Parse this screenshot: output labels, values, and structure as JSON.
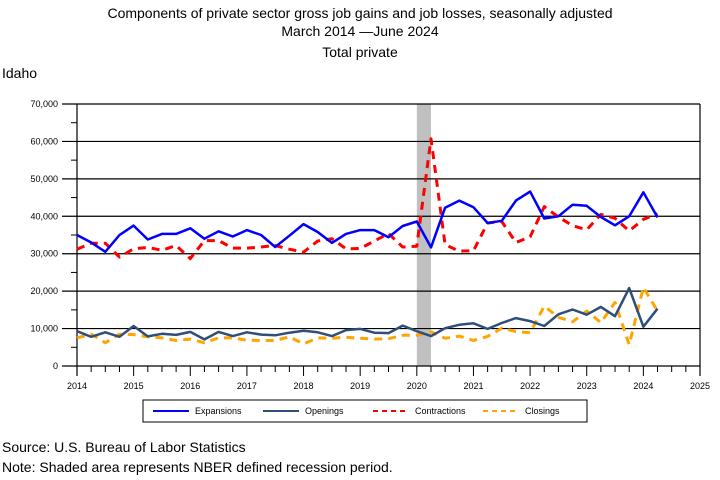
{
  "chart_data": {
    "type": "line",
    "title": "Components of private sector gross job gains and job losses, seasonally adjusted",
    "subtitle_line2": "March 2014 —June 2024",
    "subtitle_line3": "Total private",
    "region": "Idaho",
    "xlabel": "",
    "ylabel": "",
    "xlim": [
      2014,
      2025
    ],
    "ylim": [
      0,
      70000
    ],
    "x_ticks": [
      "2014",
      "2015",
      "2016",
      "2017",
      "2018",
      "2019",
      "2020",
      "2021",
      "2022",
      "2023",
      "2024",
      "2025"
    ],
    "y_ticks": [
      "0",
      "10,000",
      "20,000",
      "30,000",
      "40,000",
      "50,000",
      "60,000",
      "70,000"
    ],
    "grid": true,
    "legend_position": "bottom",
    "recession": {
      "start": 2020.0,
      "end": 2020.25
    },
    "x_start_quarter": "2014Q1",
    "series": [
      {
        "name": "Expansions",
        "color": "#0000ff",
        "dash": "solid",
        "values": [
          35000,
          33000,
          30500,
          35000,
          37500,
          33800,
          35300,
          35300,
          36800,
          34000,
          36000,
          34600,
          36300,
          35000,
          31800,
          34800,
          37900,
          35800,
          32900,
          35300,
          36300,
          36300,
          34400,
          37400,
          38600,
          31700,
          42300,
          44200,
          42400,
          38200,
          38800,
          44200,
          46600,
          39400,
          40000,
          43100,
          42800,
          39800,
          37600,
          40000,
          46400,
          39700
        ]
      },
      {
        "name": "Openings",
        "color": "#2f4f7a",
        "dash": "solid",
        "values": [
          9300,
          7800,
          9000,
          7800,
          10700,
          7900,
          8600,
          8300,
          9100,
          7100,
          9100,
          8000,
          9000,
          8400,
          8200,
          8900,
          9400,
          9000,
          8000,
          9600,
          9900,
          8900,
          8800,
          10800,
          9300,
          8000,
          10100,
          11000,
          11400,
          9900,
          11500,
          12800,
          12000,
          10700,
          13800,
          15100,
          13700,
          15800,
          13300,
          20800,
          10500,
          15300
        ]
      },
      {
        "name": "Contractions",
        "color": "#ff0000",
        "dash": "dashed",
        "values": [
          31200,
          32800,
          32800,
          29100,
          31300,
          31700,
          30900,
          32200,
          28700,
          33500,
          33500,
          31500,
          31500,
          31800,
          32200,
          31200,
          30400,
          33400,
          34000,
          31300,
          31400,
          33400,
          35400,
          31800,
          32000,
          60700,
          32400,
          30700,
          30800,
          38200,
          38600,
          33000,
          34500,
          42600,
          39800,
          37500,
          36400,
          40500,
          39500,
          36100,
          39200,
          40700
        ]
      },
      {
        "name": "Closings",
        "color": "#ffa500",
        "dash": "dashed",
        "values": [
          7500,
          8500,
          6200,
          8500,
          8400,
          7800,
          7500,
          6800,
          7200,
          6200,
          7500,
          7500,
          6900,
          6800,
          6800,
          7800,
          5900,
          7500,
          7400,
          7700,
          7400,
          7200,
          7300,
          8200,
          8200,
          9100,
          7400,
          8000,
          6800,
          7900,
          10100,
          9200,
          8900,
          16000,
          13000,
          11800,
          14700,
          11600,
          17000,
          5700,
          21000,
          14700
        ]
      }
    ]
  },
  "footer": {
    "source": "Source: U.S. Bureau of Labor Statistics",
    "note": "Note: Shaded area represents NBER defined recession period."
  }
}
